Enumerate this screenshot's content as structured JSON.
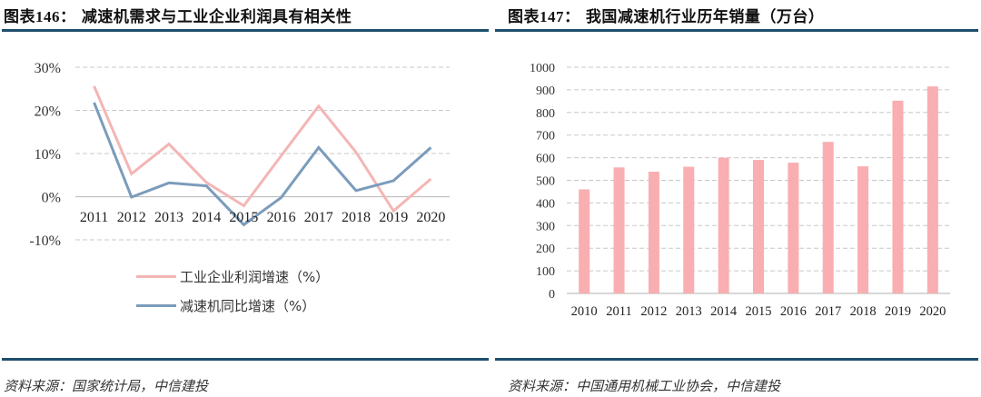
{
  "left_panel": {
    "title_prefix": "图表146：",
    "title_text": "减速机需求与工业企业利润具有相关性",
    "source": "资料来源：国家统计局，中信建投",
    "legend": [
      {
        "label": "工业企业利润增速（%）",
        "color": "#f4b5b5"
      },
      {
        "label": "减速机同比增速（%）",
        "color": "#7b9cbb"
      }
    ]
  },
  "right_panel": {
    "title_prefix": "图表147：",
    "title_text": "我国减速机行业历年销量（万台）",
    "source": "资料来源：中国通用机械工业协会，中信建投"
  },
  "colors": {
    "rule": "#1f4e6e",
    "pink_line": "#f4b5b5",
    "blue_line": "#7b9cbb",
    "bar": "#f9aeb1",
    "grid": "#c8c8c8"
  },
  "chart_data": [
    {
      "type": "line",
      "title": "减速机需求与工业企业利润具有相关性",
      "xlabel": "",
      "ylabel": "",
      "categories": [
        "2011",
        "2012",
        "2013",
        "2014",
        "2015",
        "2016",
        "2017",
        "2018",
        "2019",
        "2020"
      ],
      "series": [
        {
          "name": "工业企业利润增速（%）",
          "values": [
            25.6,
            5.3,
            12.2,
            3.3,
            -2.1,
            9.5,
            21.0,
            10.3,
            -3.3,
            4.1
          ]
        },
        {
          "name": "减速机同比增速（%）",
          "values": [
            21.8,
            -0.1,
            3.2,
            2.5,
            -6.5,
            -0.2,
            11.4,
            1.4,
            3.7,
            11.4
          ]
        }
      ],
      "ylim": [
        -10,
        30
      ],
      "yticks": [
        "30%",
        "20%",
        "10%",
        "0%",
        "-10%"
      ],
      "grid": true,
      "legend_position": "bottom"
    },
    {
      "type": "bar",
      "title": "我国减速机行业历年销量（万台）",
      "xlabel": "",
      "ylabel": "",
      "categories": [
        "2010",
        "2011",
        "2012",
        "2013",
        "2014",
        "2015",
        "2016",
        "2017",
        "2018",
        "2019",
        "2020"
      ],
      "values": [
        460,
        557,
        538,
        560,
        600,
        590,
        578,
        670,
        562,
        852,
        915
      ],
      "ylim": [
        0,
        1000
      ],
      "yticks": [
        "1000",
        "900",
        "800",
        "700",
        "600",
        "500",
        "400",
        "300",
        "200",
        "100",
        "0"
      ],
      "grid": true
    }
  ]
}
